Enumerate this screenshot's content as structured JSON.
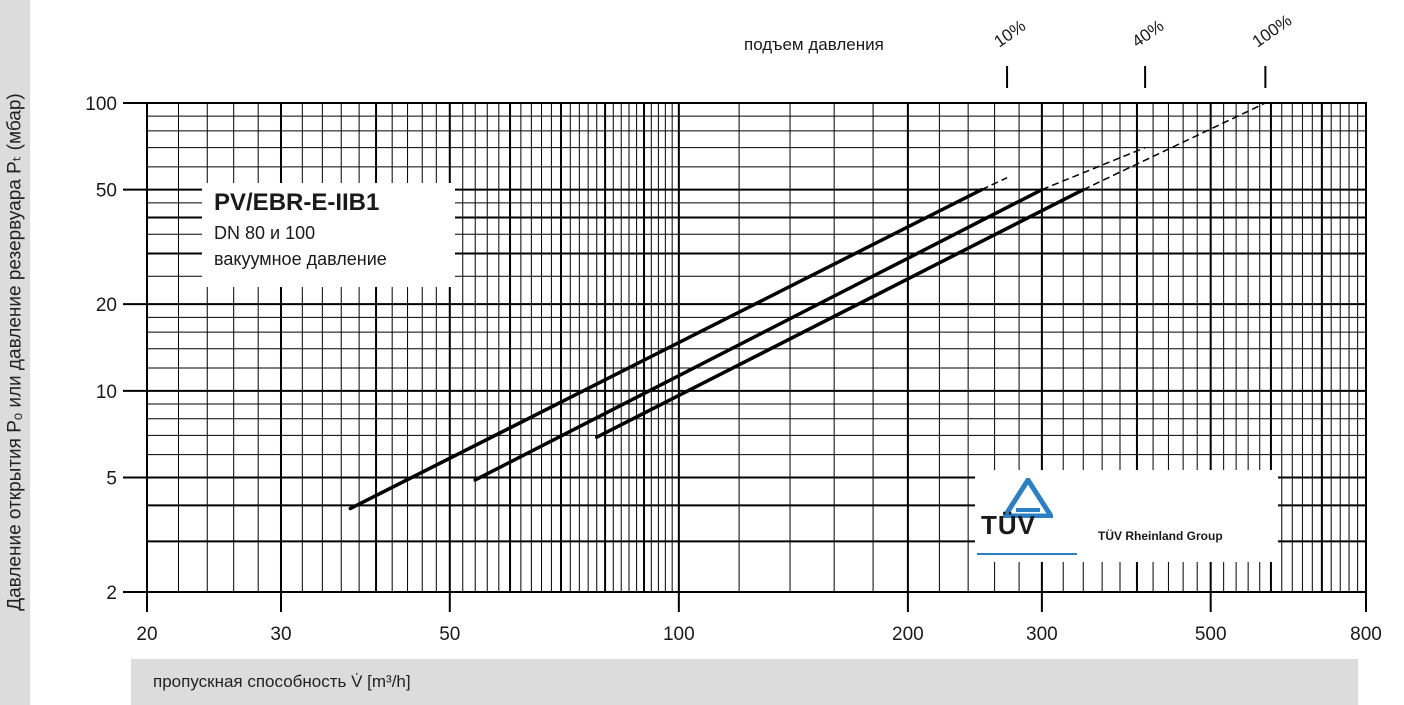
{
  "chart_data": {
    "type": "line",
    "title": "",
    "ylabel": "Давление открытия Pₒ или давление резервуара Pₜ (мбар)",
    "xlabel": "пропускная способность V̇ [m³/h]",
    "x_scale": "log",
    "y_scale": "log",
    "xlim": [
      20,
      800
    ],
    "ylim": [
      2,
      100
    ],
    "x_ticks": [
      20,
      30,
      50,
      100,
      200,
      300,
      500,
      800
    ],
    "y_ticks": [
      2,
      5,
      10,
      20,
      50,
      100
    ],
    "grid": true,
    "series": [
      {
        "solid": [
          [
            37,
            3.9
          ],
          [
            250,
            50
          ]
        ],
        "dashed": [
          [
            250,
            50
          ],
          [
            270,
            55
          ]
        ]
      },
      {
        "solid": [
          [
            54,
            4.9
          ],
          [
            300,
            50
          ]
        ],
        "dashed": [
          [
            300,
            50
          ],
          [
            410,
            70
          ]
        ]
      },
      {
        "solid": [
          [
            78,
            6.9
          ],
          [
            340,
            50
          ]
        ],
        "dashed": [
          [
            340,
            50
          ],
          [
            590,
            100
          ]
        ]
      }
    ],
    "pressure_rise_label": "подъем давления",
    "pressure_rise_markers": [
      {
        "label": "10%",
        "x": 270
      },
      {
        "label": "40%",
        "x": 410
      },
      {
        "label": "100%",
        "x": 590
      }
    ],
    "annotation": {
      "title": "PV/EBR-E-IIB1",
      "dn": "DN 80 и 100",
      "desc": "вакуумное давление"
    },
    "logo": {
      "word": "TÜV",
      "group": "TÜV Rheinland Group"
    }
  }
}
